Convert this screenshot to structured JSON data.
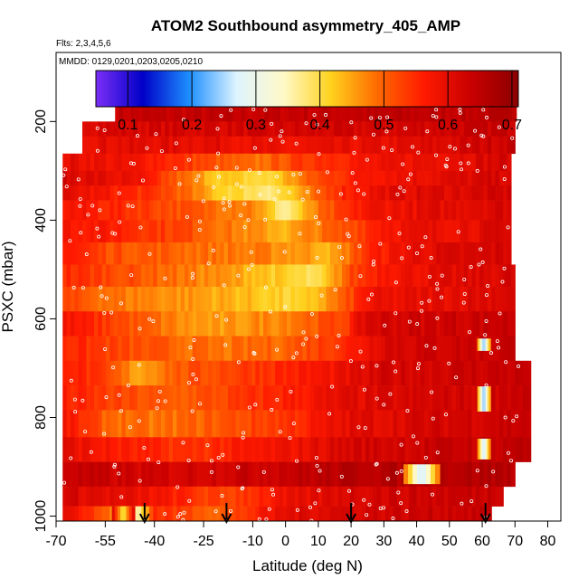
{
  "chart_data": {
    "type": "heatmap",
    "title": "ATOM2 Southbound asymmetry_405_AMP",
    "flights_note": "Flts: 2,3,4,5,6",
    "dates_note": "MMDD: 0129,0201,0203,0205,0210",
    "xlabel": "Latitude (deg N)",
    "ylabel": "PSXC (mbar)",
    "xlim": [
      -70,
      84
    ],
    "ylim": [
      1010,
      60
    ],
    "x_ticks": [
      -70,
      -55,
      -40,
      -25,
      -10,
      0,
      10,
      20,
      30,
      40,
      50,
      60,
      70,
      80
    ],
    "y_ticks": [
      200,
      400,
      600,
      800,
      1000
    ],
    "colorbar": {
      "range": [
        0.05,
        0.71
      ],
      "ticks": [
        0.1,
        0.2,
        0.3,
        0.4,
        0.5,
        0.6,
        0.7
      ],
      "stops": [
        "#7b2ff7",
        "#0000c8",
        "#1e90ff",
        "#dff4ff",
        "#fff9c8",
        "#ffd21e",
        "#ff6a00",
        "#ff1a00",
        "#c80000",
        "#8b0000"
      ]
    },
    "arrows_lat": [
      -43,
      -18,
      20,
      61
    ],
    "layers": [
      {
        "p0": 170,
        "p1": 200,
        "xmin": -52,
        "xmax": 70,
        "profile": [
          [
            -52,
            0.64
          ],
          [
            0,
            0.64
          ],
          [
            70,
            0.65
          ]
        ]
      },
      {
        "p0": 200,
        "p1": 230,
        "xmin": -62,
        "xmax": 70,
        "profile": [
          [
            -62,
            0.62
          ],
          [
            -20,
            0.62
          ],
          [
            30,
            0.62
          ],
          [
            70,
            0.64
          ]
        ]
      },
      {
        "p0": 230,
        "p1": 265,
        "xmin": -62,
        "xmax": 70,
        "profile": [
          [
            -62,
            0.6
          ],
          [
            -20,
            0.6
          ],
          [
            0,
            0.58
          ],
          [
            40,
            0.6
          ],
          [
            70,
            0.64
          ]
        ]
      },
      {
        "p0": 265,
        "p1": 300,
        "xmin": -68,
        "xmax": 68,
        "profile": [
          [
            -68,
            0.6
          ],
          [
            -40,
            0.57
          ],
          [
            -25,
            0.52
          ],
          [
            -10,
            0.48
          ],
          [
            10,
            0.55
          ],
          [
            30,
            0.58
          ],
          [
            68,
            0.62
          ]
        ]
      },
      {
        "p0": 300,
        "p1": 330,
        "xmin": -68,
        "xmax": 68,
        "profile": [
          [
            -68,
            0.62
          ],
          [
            -45,
            0.58
          ],
          [
            -30,
            0.48
          ],
          [
            -20,
            0.42
          ],
          [
            -5,
            0.4
          ],
          [
            10,
            0.52
          ],
          [
            25,
            0.58
          ],
          [
            68,
            0.62
          ]
        ]
      },
      {
        "p0": 330,
        "p1": 360,
        "xmin": -68,
        "xmax": 68,
        "profile": [
          [
            -68,
            0.6
          ],
          [
            -50,
            0.56
          ],
          [
            -35,
            0.52
          ],
          [
            -20,
            0.42
          ],
          [
            -5,
            0.38
          ],
          [
            5,
            0.44
          ],
          [
            15,
            0.55
          ],
          [
            30,
            0.6
          ],
          [
            68,
            0.62
          ]
        ]
      },
      {
        "p0": 360,
        "p1": 400,
        "xmin": -68,
        "xmax": 68,
        "profile": [
          [
            -68,
            0.58
          ],
          [
            -45,
            0.54
          ],
          [
            -25,
            0.5
          ],
          [
            -10,
            0.48
          ],
          [
            0,
            0.36
          ],
          [
            10,
            0.48
          ],
          [
            25,
            0.58
          ],
          [
            68,
            0.62
          ]
        ]
      },
      {
        "p0": 400,
        "p1": 445,
        "xmin": -68,
        "xmax": 68,
        "profile": [
          [
            -68,
            0.58
          ],
          [
            -50,
            0.56
          ],
          [
            -30,
            0.52
          ],
          [
            -10,
            0.46
          ],
          [
            0,
            0.44
          ],
          [
            10,
            0.48
          ],
          [
            20,
            0.52
          ],
          [
            30,
            0.58
          ],
          [
            68,
            0.61
          ]
        ]
      },
      {
        "p0": 445,
        "p1": 490,
        "xmin": -68,
        "xmax": 68,
        "profile": [
          [
            -68,
            0.58
          ],
          [
            -55,
            0.52
          ],
          [
            -35,
            0.5
          ],
          [
            -15,
            0.48
          ],
          [
            5,
            0.46
          ],
          [
            15,
            0.44
          ],
          [
            25,
            0.55
          ],
          [
            40,
            0.6
          ],
          [
            68,
            0.62
          ]
        ]
      },
      {
        "p0": 490,
        "p1": 535,
        "xmin": -68,
        "xmax": 70,
        "profile": [
          [
            -68,
            0.55
          ],
          [
            -50,
            0.52
          ],
          [
            -30,
            0.48
          ],
          [
            -10,
            0.44
          ],
          [
            10,
            0.38
          ],
          [
            20,
            0.52
          ],
          [
            30,
            0.58
          ],
          [
            70,
            0.62
          ]
        ]
      },
      {
        "p0": 535,
        "p1": 585,
        "xmin": -68,
        "xmax": 70,
        "profile": [
          [
            -68,
            0.52
          ],
          [
            -50,
            0.48
          ],
          [
            -30,
            0.46
          ],
          [
            -10,
            0.43
          ],
          [
            5,
            0.4
          ],
          [
            18,
            0.5
          ],
          [
            25,
            0.58
          ],
          [
            70,
            0.62
          ]
        ]
      },
      {
        "p0": 585,
        "p1": 635,
        "xmin": -68,
        "xmax": 70,
        "profile": [
          [
            -68,
            0.58
          ],
          [
            -50,
            0.52
          ],
          [
            -30,
            0.46
          ],
          [
            -20,
            0.45
          ],
          [
            0,
            0.48
          ],
          [
            18,
            0.53
          ],
          [
            25,
            0.62
          ],
          [
            70,
            0.64
          ]
        ]
      },
      {
        "p0": 635,
        "p1": 685,
        "xmin": -68,
        "xmax": 70,
        "profile": [
          [
            -68,
            0.56
          ],
          [
            -50,
            0.52
          ],
          [
            -35,
            0.5
          ],
          [
            -20,
            0.48
          ],
          [
            0,
            0.5
          ],
          [
            20,
            0.56
          ],
          [
            30,
            0.62
          ],
          [
            70,
            0.64
          ]
        ]
      },
      {
        "p0": 685,
        "p1": 735,
        "xmin": -68,
        "xmax": 74,
        "profile": [
          [
            -68,
            0.58
          ],
          [
            -55,
            0.52
          ],
          [
            -45,
            0.45
          ],
          [
            -35,
            0.5
          ],
          [
            -10,
            0.54
          ],
          [
            15,
            0.58
          ],
          [
            30,
            0.62
          ],
          [
            74,
            0.64
          ]
        ]
      },
      {
        "p0": 735,
        "p1": 785,
        "xmin": -68,
        "xmax": 74,
        "profile": [
          [
            -68,
            0.56
          ],
          [
            -50,
            0.52
          ],
          [
            -35,
            0.5
          ],
          [
            -20,
            0.52
          ],
          [
            0,
            0.56
          ],
          [
            20,
            0.6
          ],
          [
            74,
            0.64
          ]
        ]
      },
      {
        "p0": 785,
        "p1": 840,
        "xmin": -68,
        "xmax": 74,
        "profile": [
          [
            -68,
            0.58
          ],
          [
            -55,
            0.5
          ],
          [
            -40,
            0.48
          ],
          [
            -25,
            0.5
          ],
          [
            0,
            0.54
          ],
          [
            20,
            0.6
          ],
          [
            74,
            0.64
          ]
        ]
      },
      {
        "p0": 840,
        "p1": 890,
        "xmin": -68,
        "xmax": 74,
        "profile": [
          [
            -68,
            0.6
          ],
          [
            -50,
            0.56
          ],
          [
            -30,
            0.54
          ],
          [
            0,
            0.58
          ],
          [
            20,
            0.62
          ],
          [
            74,
            0.65
          ]
        ]
      },
      {
        "p0": 890,
        "p1": 940,
        "xmin": -68,
        "xmax": 70,
        "profile": [
          [
            -68,
            0.64
          ],
          [
            -40,
            0.62
          ],
          [
            0,
            0.64
          ],
          [
            25,
            0.66
          ],
          [
            70,
            0.66
          ]
        ]
      },
      {
        "p0": 940,
        "p1": 980,
        "xmin": -68,
        "xmax": 66,
        "profile": [
          [
            -68,
            0.62
          ],
          [
            -40,
            0.58
          ],
          [
            -20,
            0.52
          ],
          [
            0,
            0.58
          ],
          [
            20,
            0.62
          ],
          [
            66,
            0.64
          ]
        ]
      },
      {
        "p0": 980,
        "p1": 1010,
        "xmin": -68,
        "xmax": 62,
        "profile": [
          [
            -68,
            0.62
          ],
          [
            -55,
            0.5
          ],
          [
            -45,
            0.35
          ],
          [
            -40,
            0.55
          ],
          [
            -20,
            0.5
          ],
          [
            0,
            0.6
          ],
          [
            20,
            0.62
          ],
          [
            62,
            0.64
          ]
        ]
      }
    ],
    "patches": [
      {
        "x0": 58.5,
        "x1": 62.5,
        "p0": 640,
        "p1": 665,
        "v": 0.22
      },
      {
        "x0": 58.5,
        "x1": 62.5,
        "p0": 737,
        "p1": 788,
        "v": 0.22
      },
      {
        "x0": 58.5,
        "x1": 62.5,
        "p0": 843,
        "p1": 885,
        "v": 0.25
      },
      {
        "x0": 36,
        "x1": 47,
        "p0": 895,
        "p1": 935,
        "v": 0.25
      },
      {
        "x0": -53,
        "x1": -46,
        "p0": 980,
        "p1": 1010,
        "v": 0.38
      }
    ]
  }
}
